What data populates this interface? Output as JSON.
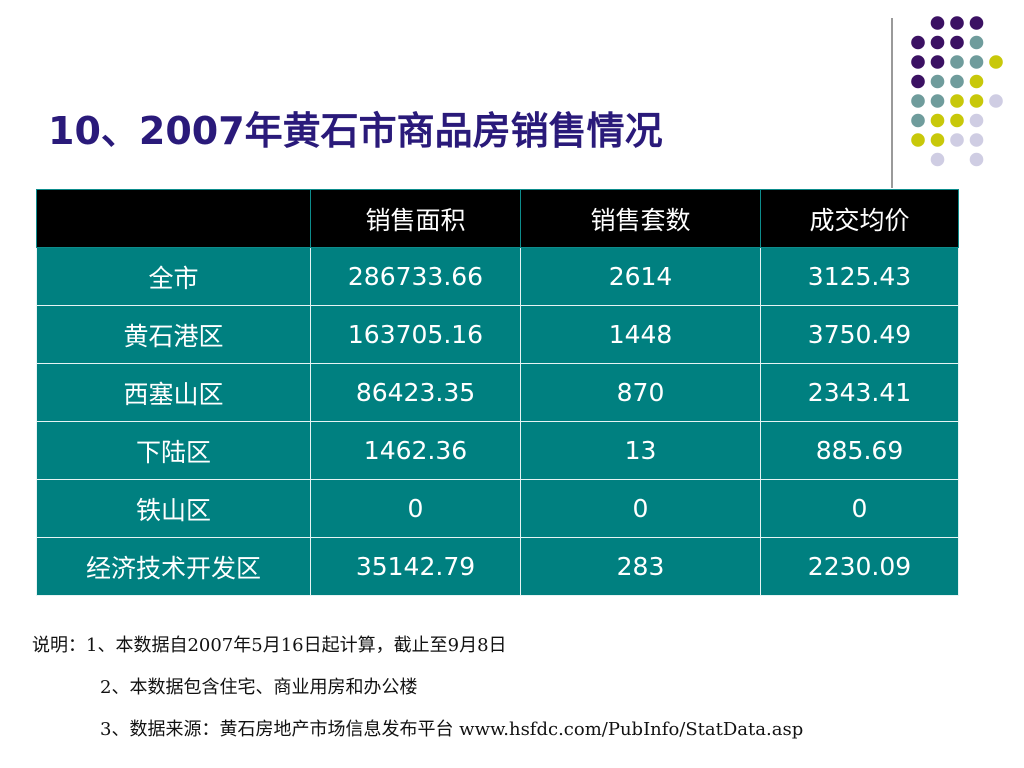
{
  "title": "10、2007年黄石市商品房销售情况",
  "colors": {
    "title": "#2a1a7a",
    "table_header_bg": "#000000",
    "table_body_bg": "#008080",
    "table_text": "#ffffff",
    "dot_purple": "#3b1163",
    "dot_teal": "#6f9c9c",
    "dot_yellow": "#c8c80a",
    "dot_lavender": "#cfcde3"
  },
  "table": {
    "headers": [
      "",
      "销售面积",
      "销售套数",
      "成交均价"
    ],
    "rows": [
      [
        "全市",
        "286733.66",
        "2614",
        "3125.43"
      ],
      [
        "黄石港区",
        "163705.16",
        "1448",
        "3750.49"
      ],
      [
        "西塞山区",
        "86423.35",
        "870",
        "2343.41"
      ],
      [
        "下陆区",
        "1462.36",
        "13",
        "885.69"
      ],
      [
        "铁山区",
        "0",
        "0",
        "0"
      ],
      [
        "经济技术开发区",
        "35142.79",
        "283",
        "2230.09"
      ]
    ]
  },
  "notes": [
    "说明：1、本数据自2007年5月16日起计算，截止至9月8日",
    "2、本数据包含住宅、商业用房和办公楼",
    "3、数据来源：黄石房地产市场信息发布平台 www.hsfdc.com/PubInfo/StatData.asp"
  ]
}
